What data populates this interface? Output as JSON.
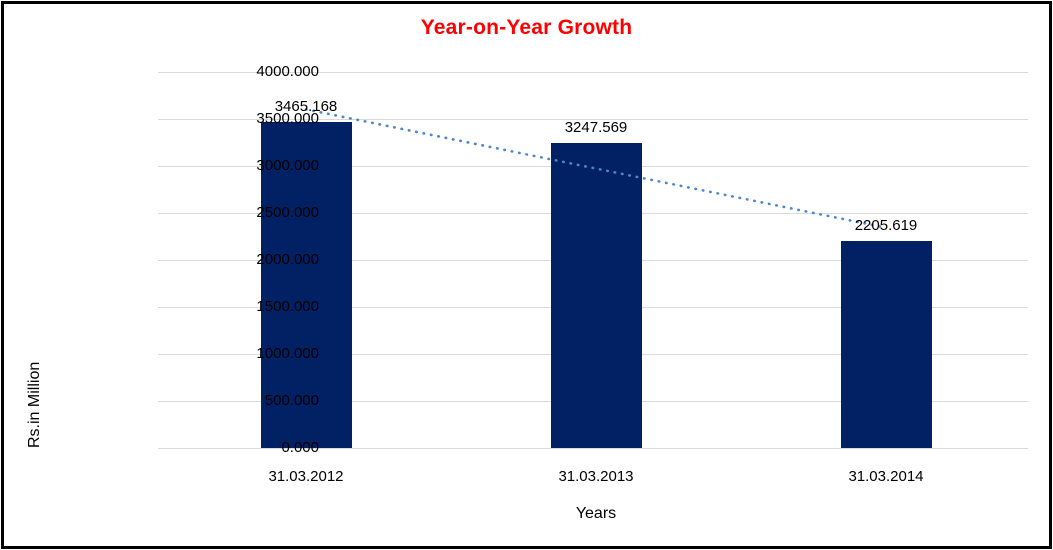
{
  "chart_data": {
    "type": "bar",
    "title": "Year-on-Year Growth",
    "xlabel": "Years",
    "ylabel": "Rs.in Million",
    "categories": [
      "31.03.2012",
      "31.03.2013",
      "31.03.2014"
    ],
    "values": [
      3465.168,
      3247.569,
      2205.619
    ],
    "data_labels": [
      "3465.168",
      "3247.569",
      "2205.619"
    ],
    "y_ticks": [
      "4000.000",
      "3500.000",
      "3000.000",
      "2500.000",
      "2000.000",
      "1500.000",
      "1000.000",
      "500.000",
      "0.000"
    ],
    "ylim": [
      0,
      4000
    ],
    "grid": true,
    "legend": "none",
    "trendline": {
      "type": "linear",
      "style": "dotted"
    },
    "colors": {
      "bar": "#022064",
      "trendline": "#4C86CC",
      "title": "#FF0000",
      "gridline": "#D9D9D9",
      "axis_text": "#000000",
      "background": "#FFFFFF",
      "frame_border": "#000000"
    }
  }
}
